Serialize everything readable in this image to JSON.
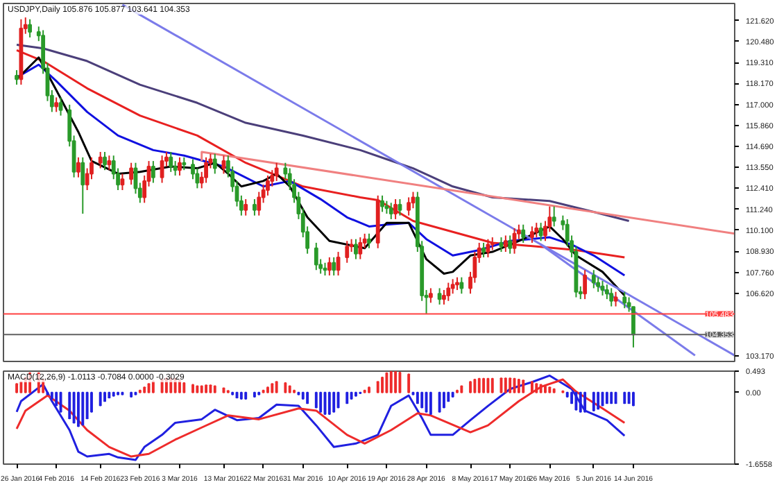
{
  "chart_data": [
    {
      "type": "candlestick",
      "title": "USDJPY,Daily  105.876 105.877 103.641 104.353",
      "xlim": [
        "2016-01-23",
        "2016-07-07"
      ],
      "ylim": [
        102.87,
        122.57
      ],
      "tick_labels": "y",
      "yticks": [
        {
          "value": 121.62,
          "label": "121.620"
        },
        {
          "value": 120.48,
          "label": "120.480"
        },
        {
          "value": 119.31,
          "label": "119.310"
        },
        {
          "value": 118.17,
          "label": "118.170"
        },
        {
          "value": 117.0,
          "label": "117.000"
        },
        {
          "value": 115.86,
          "label": "115.860"
        },
        {
          "value": 114.69,
          "label": "114.690"
        },
        {
          "value": 113.55,
          "label": "113.550"
        },
        {
          "value": 112.41,
          "label": "112.410"
        },
        {
          "value": 111.24,
          "label": "111.240"
        },
        {
          "value": 110.1,
          "label": "110.100"
        },
        {
          "value": 108.93,
          "label": "108.930"
        },
        {
          "value": 107.76,
          "label": "107.760"
        },
        {
          "value": 106.62,
          "label": "106.620"
        },
        {
          "value": 103.17,
          "label": "103.170"
        }
      ],
      "x": [
        "2016-01-26",
        "2016-01-27",
        "2016-01-28",
        "2016-01-29",
        "2016-01-31",
        "2016-02-01",
        "2016-02-02",
        "2016-02-03",
        "2016-02-04",
        "2016-02-05",
        "2016-02-07",
        "2016-02-08",
        "2016-02-09",
        "2016-02-10",
        "2016-02-11",
        "2016-02-12",
        "2016-02-14",
        "2016-02-15",
        "2016-02-16",
        "2016-02-17",
        "2016-02-18",
        "2016-02-19",
        "2016-02-21",
        "2016-02-22",
        "2016-02-23",
        "2016-02-24",
        "2016-02-25",
        "2016-02-26",
        "2016-02-28",
        "2016-02-29",
        "2016-03-01",
        "2016-03-02",
        "2016-03-03",
        "2016-03-04",
        "2016-03-06",
        "2016-03-07",
        "2016-03-08",
        "2016-03-09",
        "2016-03-10",
        "2016-03-11",
        "2016-03-13",
        "2016-03-14",
        "2016-03-15",
        "2016-03-16",
        "2016-03-17",
        "2016-03-18",
        "2016-03-20",
        "2016-03-21",
        "2016-03-22",
        "2016-03-23",
        "2016-03-24",
        "2016-03-25",
        "2016-03-27",
        "2016-03-28",
        "2016-03-29",
        "2016-03-30",
        "2016-03-31",
        "2016-04-01",
        "2016-04-03",
        "2016-04-04",
        "2016-04-05",
        "2016-04-06",
        "2016-04-07",
        "2016-04-08",
        "2016-04-10",
        "2016-04-11",
        "2016-04-12",
        "2016-04-13",
        "2016-04-14",
        "2016-04-15",
        "2016-04-17",
        "2016-04-18",
        "2016-04-19",
        "2016-04-20",
        "2016-04-21",
        "2016-04-22",
        "2016-04-24",
        "2016-04-25",
        "2016-04-26",
        "2016-04-27",
        "2016-04-28",
        "2016-04-29",
        "2016-05-01",
        "2016-05-02",
        "2016-05-03",
        "2016-05-04",
        "2016-05-05",
        "2016-05-06",
        "2016-05-08",
        "2016-05-09",
        "2016-05-10",
        "2016-05-11",
        "2016-05-12",
        "2016-05-13",
        "2016-05-15",
        "2016-05-16",
        "2016-05-17",
        "2016-05-18",
        "2016-05-19",
        "2016-05-20",
        "2016-05-22",
        "2016-05-23",
        "2016-05-24",
        "2016-05-25",
        "2016-05-26",
        "2016-05-27",
        "2016-05-29",
        "2016-05-30",
        "2016-05-31",
        "2016-06-01",
        "2016-06-02",
        "2016-06-03",
        "2016-06-05",
        "2016-06-06",
        "2016-06-07",
        "2016-06-08",
        "2016-06-09",
        "2016-06-10",
        "2016-06-12",
        "2016-06-13",
        "2016-06-14"
      ],
      "ohlc": [
        [
          118.6,
          118.9,
          118.1,
          118.4
        ],
        [
          118.4,
          121.7,
          118.1,
          121.2
        ],
        [
          121.2,
          121.8,
          120.9,
          121.4
        ],
        [
          121.4,
          121.7,
          120.7,
          121.0
        ],
        [
          121.0,
          121.3,
          120.5,
          120.8
        ],
        [
          120.8,
          121.1,
          118.7,
          119.0
        ],
        [
          119.0,
          119.3,
          117.2,
          117.5
        ],
        [
          117.5,
          117.8,
          116.6,
          116.9
        ],
        [
          116.9,
          117.4,
          116.6,
          117.1
        ],
        [
          117.1,
          117.4,
          116.4,
          116.7
        ],
        [
          116.7,
          117.0,
          114.7,
          115.0
        ],
        [
          115.0,
          115.3,
          113.0,
          113.3
        ],
        [
          113.3,
          114.1,
          113.0,
          113.8
        ],
        [
          113.8,
          114.1,
          111.0,
          112.6
        ],
        [
          112.6,
          113.5,
          112.3,
          113.2
        ],
        [
          113.2,
          114.1,
          112.9,
          113.8
        ],
        [
          113.8,
          114.4,
          113.5,
          114.1
        ],
        [
          114.1,
          114.4,
          113.4,
          113.7
        ],
        [
          113.7,
          114.2,
          113.4,
          113.9
        ],
        [
          113.9,
          114.2,
          112.9,
          113.2
        ],
        [
          113.2,
          113.5,
          112.3,
          112.6
        ],
        [
          112.6,
          113.2,
          112.3,
          112.9
        ],
        [
          112.9,
          113.8,
          112.6,
          113.5
        ],
        [
          113.5,
          113.8,
          112.1,
          112.4
        ],
        [
          112.4,
          112.7,
          111.6,
          111.9
        ],
        [
          111.9,
          113.1,
          111.6,
          112.8
        ],
        [
          112.8,
          113.9,
          112.5,
          113.6
        ],
        [
          113.6,
          113.9,
          112.7,
          113.0
        ],
        [
          113.0,
          114.2,
          112.7,
          113.9
        ],
        [
          113.9,
          114.4,
          113.6,
          114.1
        ],
        [
          114.1,
          114.4,
          113.3,
          113.6
        ],
        [
          113.6,
          113.9,
          113.1,
          113.4
        ],
        [
          113.4,
          114.1,
          113.1,
          113.8
        ],
        [
          113.8,
          114.1,
          113.4,
          113.7
        ],
        [
          113.7,
          114.0,
          112.9,
          113.2
        ],
        [
          113.2,
          113.5,
          112.4,
          112.7
        ],
        [
          112.7,
          113.3,
          112.4,
          113.0
        ],
        [
          113.0,
          114.1,
          112.7,
          113.8
        ],
        [
          113.8,
          114.3,
          113.5,
          114.0
        ],
        [
          114.0,
          114.3,
          113.2,
          113.5
        ],
        [
          113.5,
          114.2,
          113.2,
          113.9
        ],
        [
          113.9,
          114.2,
          113.0,
          113.3
        ],
        [
          113.3,
          113.6,
          112.2,
          112.5
        ],
        [
          112.5,
          112.8,
          111.4,
          111.7
        ],
        [
          111.7,
          112.0,
          110.9,
          111.2
        ],
        [
          111.2,
          111.8,
          110.9,
          111.5
        ],
        [
          111.5,
          111.8,
          110.9,
          111.2
        ],
        [
          111.2,
          112.2,
          110.9,
          111.9
        ],
        [
          111.9,
          112.6,
          111.6,
          112.3
        ],
        [
          112.3,
          113.1,
          112.0,
          112.8
        ],
        [
          112.8,
          113.4,
          112.5,
          113.1
        ],
        [
          113.1,
          113.8,
          112.8,
          113.5
        ],
        [
          113.5,
          113.8,
          112.9,
          113.2
        ],
        [
          113.2,
          113.5,
          112.3,
          112.6
        ],
        [
          112.6,
          112.9,
          111.6,
          111.9
        ],
        [
          111.9,
          112.2,
          110.7,
          111.0
        ],
        [
          111.0,
          111.3,
          109.7,
          110.0
        ],
        [
          110.0,
          110.3,
          108.8,
          109.1
        ],
        [
          109.1,
          109.4,
          107.9,
          108.2
        ],
        [
          108.2,
          108.5,
          107.7,
          108.0
        ],
        [
          108.0,
          108.3,
          107.6,
          107.9
        ],
        [
          107.9,
          108.6,
          107.6,
          108.3
        ],
        [
          108.3,
          108.6,
          107.6,
          107.9
        ],
        [
          107.9,
          108.9,
          107.6,
          108.6
        ],
        [
          108.6,
          109.5,
          108.3,
          109.2
        ],
        [
          109.2,
          109.6,
          108.9,
          109.3
        ],
        [
          109.3,
          109.6,
          108.5,
          108.8
        ],
        [
          108.8,
          109.7,
          108.5,
          109.4
        ],
        [
          109.4,
          109.9,
          109.1,
          109.6
        ],
        [
          109.6,
          109.9,
          109.1,
          109.4
        ],
        [
          109.4,
          112.0,
          109.1,
          111.7
        ],
        [
          111.7,
          112.0,
          111.1,
          111.4
        ],
        [
          111.4,
          111.7,
          111.0,
          111.3
        ],
        [
          111.3,
          111.6,
          110.7,
          111.0
        ],
        [
          111.0,
          111.8,
          110.7,
          111.5
        ],
        [
          111.5,
          111.8,
          110.9,
          111.2
        ],
        [
          111.2,
          111.9,
          110.9,
          111.6
        ],
        [
          111.6,
          112.2,
          111.3,
          111.9
        ],
        [
          111.9,
          112.2,
          108.9,
          109.2
        ],
        [
          109.2,
          109.5,
          106.2,
          106.5
        ],
        [
          106.5,
          106.8,
          105.5,
          106.4
        ],
        [
          106.4,
          106.9,
          106.1,
          106.6
        ],
        [
          106.6,
          106.9,
          106.0,
          106.3
        ],
        [
          106.3,
          106.8,
          106.0,
          106.5
        ],
        [
          106.5,
          107.2,
          106.2,
          106.9
        ],
        [
          106.9,
          107.4,
          106.6,
          107.1
        ],
        [
          107.1,
          107.5,
          106.8,
          107.2
        ],
        [
          107.2,
          107.5,
          106.6,
          106.9
        ],
        [
          106.9,
          107.8,
          106.6,
          107.5
        ],
        [
          107.5,
          108.9,
          107.2,
          108.6
        ],
        [
          108.6,
          109.4,
          108.3,
          109.1
        ],
        [
          109.1,
          109.4,
          108.6,
          108.9
        ],
        [
          108.9,
          109.6,
          108.6,
          109.3
        ],
        [
          109.3,
          109.7,
          109.0,
          109.4
        ],
        [
          109.4,
          109.7,
          108.9,
          109.2
        ],
        [
          109.2,
          109.8,
          108.9,
          109.5
        ],
        [
          109.5,
          109.8,
          108.8,
          109.1
        ],
        [
          109.1,
          110.2,
          108.8,
          109.9
        ],
        [
          109.9,
          110.4,
          109.6,
          110.1
        ],
        [
          110.1,
          110.4,
          109.4,
          109.7
        ],
        [
          109.7,
          110.3,
          109.4,
          110.0
        ],
        [
          110.0,
          110.5,
          109.7,
          110.2
        ],
        [
          110.2,
          110.5,
          109.5,
          109.8
        ],
        [
          109.8,
          110.6,
          109.5,
          110.3
        ],
        [
          110.3,
          111.4,
          110.0,
          110.8
        ],
        [
          110.8,
          111.4,
          110.3,
          110.6
        ],
        [
          110.6,
          110.9,
          110.1,
          110.4
        ],
        [
          110.4,
          110.7,
          109.2,
          109.5
        ],
        [
          109.5,
          109.8,
          108.6,
          108.9
        ],
        [
          108.9,
          109.2,
          106.4,
          106.7
        ],
        [
          106.7,
          107.0,
          106.3,
          106.6
        ],
        [
          106.6,
          107.9,
          106.3,
          107.6
        ],
        [
          107.6,
          107.9,
          106.9,
          107.2
        ],
        [
          107.2,
          107.5,
          106.7,
          107.0
        ],
        [
          107.0,
          107.3,
          106.5,
          106.8
        ],
        [
          106.8,
          107.1,
          106.3,
          106.6
        ],
        [
          106.6,
          106.9,
          105.9,
          106.2
        ],
        [
          106.2,
          106.7,
          105.9,
          106.4
        ],
        [
          106.4,
          106.7,
          105.8,
          106.1
        ],
        [
          106.1,
          106.4,
          105.6,
          105.9
        ],
        [
          105.876,
          105.877,
          103.641,
          104.353
        ]
      ],
      "colors": [
        "#2a9a2a",
        "#e02020",
        "#e02020",
        "#2a9a2a",
        "#2a9a2a",
        "#2a9a2a",
        "#2a9a2a",
        "#2a9a2a",
        "#e02020",
        "#2a9a2a",
        "#2a9a2a",
        "#2a9a2a",
        "#e02020",
        "#2a9a2a",
        "#e02020",
        "#e02020",
        "#e02020",
        "#2a9a2a",
        "#e02020",
        "#2a9a2a",
        "#2a9a2a",
        "#e02020",
        "#e02020",
        "#2a9a2a",
        "#2a9a2a",
        "#e02020",
        "#e02020",
        "#2a9a2a",
        "#e02020",
        "#e02020",
        "#2a9a2a",
        "#2a9a2a",
        "#e02020",
        "#2a9a2a",
        "#2a9a2a",
        "#2a9a2a",
        "#e02020",
        "#e02020",
        "#e02020",
        "#2a9a2a",
        "#e02020",
        "#2a9a2a",
        "#2a9a2a",
        "#2a9a2a",
        "#2a9a2a",
        "#e02020",
        "#2a9a2a",
        "#e02020",
        "#e02020",
        "#e02020",
        "#e02020",
        "#e02020",
        "#2a9a2a",
        "#2a9a2a",
        "#2a9a2a",
        "#2a9a2a",
        "#2a9a2a",
        "#2a9a2a",
        "#2a9a2a",
        "#2a9a2a",
        "#2a9a2a",
        "#e02020",
        "#2a9a2a",
        "#e02020",
        "#e02020",
        "#e02020",
        "#2a9a2a",
        "#e02020",
        "#e02020",
        "#2a9a2a",
        "#e02020",
        "#2a9a2a",
        "#2a9a2a",
        "#2a9a2a",
        "#e02020",
        "#2a9a2a",
        "#e02020",
        "#e02020",
        "#2a9a2a",
        "#2a9a2a",
        "#2a9a2a",
        "#e02020",
        "#2a9a2a",
        "#e02020",
        "#e02020",
        "#e02020",
        "#e02020",
        "#2a9a2a",
        "#e02020",
        "#e02020",
        "#e02020",
        "#2a9a2a",
        "#e02020",
        "#e02020",
        "#2a9a2a",
        "#e02020",
        "#2a9a2a",
        "#e02020",
        "#e02020",
        "#2a9a2a",
        "#e02020",
        "#e02020",
        "#2a9a2a",
        "#e02020",
        "#e02020",
        "#2a9a2a",
        "#2a9a2a",
        "#2a9a2a",
        "#2a9a2a",
        "#2a9a2a",
        "#2a9a2a",
        "#e02020",
        "#2a9a2a",
        "#2a9a2a",
        "#2a9a2a",
        "#2a9a2a",
        "#2a9a2a",
        "#e02020",
        "#2a9a2a",
        "#2a9a2a",
        "#2a9a2a"
      ],
      "series": [
        {
          "type": "line",
          "color": "#4b3f7a",
          "x": [
            "2016-01-26",
            "2016-02-01",
            "2016-02-11",
            "2016-02-23",
            "2016-03-07",
            "2016-03-18",
            "2016-03-31",
            "2016-04-13",
            "2016-04-19",
            "2016-04-25",
            "2016-05-04",
            "2016-05-13",
            "2016-05-26",
            "2016-06-05",
            "2016-06-13"
          ],
          "values": [
            120.3,
            120.1,
            119.4,
            118.1,
            117.1,
            116.0,
            115.3,
            114.5,
            114.0,
            113.5,
            112.5,
            111.9,
            111.7,
            111.1,
            110.6
          ]
        },
        {
          "type": "line",
          "color": "#e82020",
          "x": [
            "2016-01-26",
            "2016-02-01",
            "2016-02-11",
            "2016-02-23",
            "2016-03-07",
            "2016-03-18",
            "2016-03-31",
            "2016-04-13",
            "2016-04-17",
            "2016-04-25",
            "2016-05-04",
            "2016-05-13",
            "2016-05-23",
            "2016-06-01",
            "2016-06-12"
          ],
          "values": [
            120.0,
            119.4,
            117.9,
            116.4,
            115.3,
            113.8,
            112.5,
            111.9,
            111.75,
            110.6,
            110.0,
            109.4,
            109.2,
            109.0,
            108.6
          ]
        },
        {
          "type": "line",
          "color": "#1010e0",
          "x": [
            "2016-01-26",
            "2016-01-31",
            "2016-02-04",
            "2016-02-11",
            "2016-02-18",
            "2016-02-26",
            "2016-03-04",
            "2016-03-13",
            "2016-03-22",
            "2016-03-28",
            "2016-04-04",
            "2016-04-10",
            "2016-04-15",
            "2016-04-19",
            "2016-04-24",
            "2016-04-28",
            "2016-05-04",
            "2016-05-10",
            "2016-05-17",
            "2016-05-26",
            "2016-05-31",
            "2016-06-05",
            "2016-06-12"
          ],
          "values": [
            118.5,
            119.2,
            118.3,
            116.6,
            115.3,
            114.5,
            114.2,
            113.6,
            112.5,
            112.8,
            111.8,
            110.8,
            110.3,
            110.4,
            110.5,
            109.6,
            108.7,
            109.0,
            109.5,
            109.7,
            109.3,
            108.7,
            107.6
          ]
        },
        {
          "type": "line",
          "color": "#000000",
          "x": [
            "2016-01-26",
            "2016-01-31",
            "2016-02-04",
            "2016-02-09",
            "2016-02-12",
            "2016-02-18",
            "2016-02-23",
            "2016-03-01",
            "2016-03-07",
            "2016-03-11",
            "2016-03-14",
            "2016-03-17",
            "2016-03-22",
            "2016-03-25",
            "2016-03-28",
            "2016-04-01",
            "2016-04-06",
            "2016-04-14",
            "2016-04-19",
            "2016-04-24",
            "2016-04-28",
            "2016-05-02",
            "2016-05-04",
            "2016-05-08",
            "2016-05-13",
            "2016-05-19",
            "2016-05-26",
            "2016-05-29",
            "2016-06-01",
            "2016-06-07",
            "2016-06-12"
          ],
          "values": [
            118.4,
            119.6,
            117.8,
            115.5,
            113.9,
            113.2,
            113.3,
            113.6,
            113.5,
            113.8,
            113.2,
            112.5,
            112.8,
            113.2,
            112.5,
            110.8,
            109.5,
            109.1,
            110.5,
            110.5,
            108.5,
            107.7,
            107.8,
            108.7,
            108.9,
            109.5,
            110.3,
            109.6,
            108.7,
            107.8,
            106.5
          ]
        },
        {
          "type": "line",
          "color": "#7b7bea",
          "x": [
            "2016-02-19",
            "2016-07-07"
          ],
          "values": [
            122.5,
            103.2
          ]
        },
        {
          "type": "line",
          "color": "#7b7bea",
          "x": [
            "2016-05-24",
            "2016-06-28"
          ],
          "values": [
            109.3,
            103.2
          ]
        },
        {
          "type": "line",
          "color": "#f08080",
          "x": [
            "2016-03-08",
            "2016-03-08",
            "2016-07-07"
          ],
          "values": [
            113.9,
            114.4,
            109.9
          ]
        }
      ],
      "ref_lines": [
        {
          "axis": "y",
          "value": 105.483,
          "label": "105.483",
          "color": "#ff4040"
        },
        {
          "axis": "y",
          "value": 104.353,
          "label": "104.353",
          "color": "#606060"
        }
      ]
    },
    {
      "type": "bar",
      "title": "MACD(12,26,9) -1.0113 -0.7084 0.0000 -0.3029",
      "xlim": [
        "2016-01-23",
        "2016-07-07"
      ],
      "xticks": [
        {
          "value": "2016-01-26",
          "label": "26 Jan 2016"
        },
        {
          "value": "2016-02-04",
          "label": "4 Feb 2016"
        },
        {
          "value": "2016-02-14",
          "label": "14 Feb 2016"
        },
        {
          "value": "2016-02-23",
          "label": "23 Feb 2016"
        },
        {
          "value": "2016-03-03",
          "label": "3 Mar 2016"
        },
        {
          "value": "2016-03-13",
          "label": "13 Mar 2016"
        },
        {
          "value": "2016-03-22",
          "label": "22 Mar 2016"
        },
        {
          "value": "2016-03-31",
          "label": "31 Mar 2016"
        },
        {
          "value": "2016-04-10",
          "label": "10 Apr 2016"
        },
        {
          "value": "2016-04-19",
          "label": "19 Apr 2016"
        },
        {
          "value": "2016-04-28",
          "label": "28 Apr 2016"
        },
        {
          "value": "2016-05-08",
          "label": "8 May 2016"
        },
        {
          "value": "2016-05-17",
          "label": "17 May 2016"
        },
        {
          "value": "2016-05-26",
          "label": "26 May 2016"
        },
        {
          "value": "2016-06-05",
          "label": "5 Jun 2016"
        },
        {
          "value": "2016-06-14",
          "label": "14 Jun 2016"
        }
      ],
      "ylim": [
        -1.6558,
        0.493
      ],
      "yticks": [
        {
          "value": 0.493,
          "label": "0.493"
        },
        {
          "value": 0,
          "label": "0.00"
        },
        {
          "value": -1.6558,
          "label": "-1.6558"
        }
      ],
      "x": [
        "2016-01-26",
        "2016-01-27",
        "2016-01-28",
        "2016-01-29",
        "2016-01-31",
        "2016-02-01",
        "2016-02-02",
        "2016-02-03",
        "2016-02-04",
        "2016-02-05",
        "2016-02-07",
        "2016-02-08",
        "2016-02-09",
        "2016-02-10",
        "2016-02-11",
        "2016-02-12",
        "2016-02-14",
        "2016-02-15",
        "2016-02-16",
        "2016-02-17",
        "2016-02-18",
        "2016-02-19",
        "2016-02-21",
        "2016-02-22",
        "2016-02-23",
        "2016-02-24",
        "2016-02-25",
        "2016-02-26",
        "2016-02-28",
        "2016-02-29",
        "2016-03-01",
        "2016-03-02",
        "2016-03-03",
        "2016-03-04",
        "2016-03-06",
        "2016-03-07",
        "2016-03-08",
        "2016-03-09",
        "2016-03-10",
        "2016-03-11",
        "2016-03-13",
        "2016-03-14",
        "2016-03-15",
        "2016-03-16",
        "2016-03-17",
        "2016-03-18",
        "2016-03-20",
        "2016-03-21",
        "2016-03-22",
        "2016-03-23",
        "2016-03-24",
        "2016-03-25",
        "2016-03-27",
        "2016-03-28",
        "2016-03-29",
        "2016-03-30",
        "2016-03-31",
        "2016-04-01",
        "2016-04-03",
        "2016-04-04",
        "2016-04-05",
        "2016-04-06",
        "2016-04-07",
        "2016-04-08",
        "2016-04-10",
        "2016-04-11",
        "2016-04-12",
        "2016-04-13",
        "2016-04-14",
        "2016-04-15",
        "2016-04-17",
        "2016-04-18",
        "2016-04-19",
        "2016-04-20",
        "2016-04-21",
        "2016-04-22",
        "2016-04-24",
        "2016-04-25",
        "2016-04-26",
        "2016-04-27",
        "2016-04-28",
        "2016-04-29",
        "2016-05-01",
        "2016-05-02",
        "2016-05-03",
        "2016-05-04",
        "2016-05-05",
        "2016-05-06",
        "2016-05-08",
        "2016-05-09",
        "2016-05-10",
        "2016-05-11",
        "2016-05-12",
        "2016-05-13",
        "2016-05-15",
        "2016-05-16",
        "2016-05-17",
        "2016-05-18",
        "2016-05-19",
        "2016-05-20",
        "2016-05-22",
        "2016-05-23",
        "2016-05-24",
        "2016-05-25",
        "2016-05-26",
        "2016-05-27",
        "2016-05-29",
        "2016-05-30",
        "2016-05-31",
        "2016-06-01",
        "2016-06-02",
        "2016-06-03",
        "2016-06-05",
        "2016-06-06",
        "2016-06-07",
        "2016-06-08",
        "2016-06-09",
        "2016-06-10",
        "2016-06-12",
        "2016-06-13",
        "2016-06-14"
      ],
      "values": [
        0.2,
        0.25,
        0.35,
        0.45,
        0.45,
        0.3,
        -0.05,
        -0.15,
        -0.3,
        -0.45,
        -0.6,
        -0.7,
        -0.78,
        -0.75,
        -0.6,
        -0.45,
        -0.3,
        -0.2,
        -0.12,
        -0.08,
        -0.05,
        -0.05,
        -0.1,
        -0.05,
        0.05,
        0.12,
        0.2,
        0.26,
        0.3,
        0.33,
        0.33,
        0.32,
        0.28,
        0.22,
        0.18,
        0.15,
        0.15,
        0.17,
        0.17,
        0.15,
        0.1,
        0.04,
        -0.05,
        -0.12,
        -0.15,
        -0.15,
        -0.1,
        -0.05,
        0.05,
        0.12,
        0.2,
        0.25,
        0.22,
        0.15,
        0.05,
        -0.05,
        -0.15,
        -0.25,
        -0.35,
        -0.45,
        -0.5,
        -0.5,
        -0.45,
        -0.35,
        -0.25,
        -0.15,
        -0.08,
        -0.02,
        0.05,
        0.12,
        0.25,
        0.35,
        0.45,
        0.48,
        0.48,
        0.46,
        0.42,
        -0.05,
        -0.25,
        -0.35,
        -0.45,
        -0.5,
        -0.45,
        -0.35,
        -0.2,
        -0.1,
        0.05,
        0.15,
        0.25,
        0.3,
        0.32,
        0.32,
        0.32,
        0.32,
        0.33,
        0.33,
        0.33,
        0.32,
        0.3,
        0.28,
        0.25,
        0.2,
        0.18,
        0.15,
        0.12,
        0.08,
        0.03,
        -0.1,
        -0.25,
        -0.4,
        -0.45,
        -0.45,
        -0.42,
        -0.38,
        -0.3,
        -0.25,
        -0.25,
        -0.25,
        -0.25,
        -0.25,
        -0.3
      ],
      "colors": [
        "#ee2b2b",
        "#ee2b2b",
        "#ee2b2b",
        "#ee2b2b",
        "#ee2b2b",
        "#ee2b2b",
        "#2020e0",
        "#2020e0",
        "#2020e0",
        "#2020e0",
        "#2020e0",
        "#2020e0",
        "#2020e0",
        "#2020e0",
        "#2020e0",
        "#2020e0",
        "#2020e0",
        "#2020e0",
        "#2020e0",
        "#2020e0",
        "#2020e0",
        "#2020e0",
        "#2020e0",
        "#2020e0",
        "#ee2b2b",
        "#ee2b2b",
        "#ee2b2b",
        "#ee2b2b",
        "#ee2b2b",
        "#ee2b2b",
        "#ee2b2b",
        "#ee2b2b",
        "#ee2b2b",
        "#ee2b2b",
        "#ee2b2b",
        "#ee2b2b",
        "#ee2b2b",
        "#ee2b2b",
        "#ee2b2b",
        "#ee2b2b",
        "#ee2b2b",
        "#ee2b2b",
        "#2020e0",
        "#2020e0",
        "#2020e0",
        "#2020e0",
        "#2020e0",
        "#2020e0",
        "#ee2b2b",
        "#ee2b2b",
        "#ee2b2b",
        "#ee2b2b",
        "#ee2b2b",
        "#ee2b2b",
        "#ee2b2b",
        "#2020e0",
        "#2020e0",
        "#2020e0",
        "#2020e0",
        "#2020e0",
        "#2020e0",
        "#2020e0",
        "#2020e0",
        "#2020e0",
        "#2020e0",
        "#2020e0",
        "#2020e0",
        "#2020e0",
        "#ee2b2b",
        "#ee2b2b",
        "#ee2b2b",
        "#ee2b2b",
        "#ee2b2b",
        "#ee2b2b",
        "#ee2b2b",
        "#ee2b2b",
        "#ee2b2b",
        "#2020e0",
        "#2020e0",
        "#2020e0",
        "#2020e0",
        "#2020e0",
        "#2020e0",
        "#2020e0",
        "#2020e0",
        "#2020e0",
        "#ee2b2b",
        "#ee2b2b",
        "#ee2b2b",
        "#ee2b2b",
        "#ee2b2b",
        "#ee2b2b",
        "#ee2b2b",
        "#ee2b2b",
        "#ee2b2b",
        "#ee2b2b",
        "#ee2b2b",
        "#ee2b2b",
        "#ee2b2b",
        "#ee2b2b",
        "#ee2b2b",
        "#ee2b2b",
        "#ee2b2b",
        "#ee2b2b",
        "#ee2b2b",
        "#ee2b2b",
        "#ee2b2b",
        "#2020e0",
        "#2020e0",
        "#2020e0",
        "#2020e0",
        "#2020e0",
        "#2020e0",
        "#2020e0",
        "#2020e0",
        "#2020e0",
        "#2020e0",
        "#2020e0",
        "#2020e0",
        "#2020e0",
        "#2020e0"
      ],
      "series": [
        {
          "type": "line",
          "color": "#2020e0",
          "x": [
            "2016-01-26",
            "2016-01-27",
            "2016-02-01",
            "2016-02-03",
            "2016-02-07",
            "2016-02-09",
            "2016-02-11",
            "2016-02-16",
            "2016-02-18",
            "2016-02-22",
            "2016-02-24",
            "2016-02-28",
            "2016-03-02",
            "2016-03-08",
            "2016-03-11",
            "2016-03-16",
            "2016-03-21",
            "2016-03-25",
            "2016-03-30",
            "2016-04-03",
            "2016-04-07",
            "2016-04-12",
            "2016-04-17",
            "2016-04-20",
            "2016-04-24",
            "2016-04-27",
            "2016-04-29",
            "2016-05-04",
            "2016-05-08",
            "2016-05-12",
            "2016-05-17",
            "2016-05-22",
            "2016-05-26",
            "2016-05-31",
            "2016-06-03",
            "2016-06-08",
            "2016-06-12"
          ],
          "values": [
            -0.45,
            -0.2,
            0.19,
            -0.2,
            -0.87,
            -1.37,
            -1.48,
            -1.42,
            -1.5,
            -1.56,
            -1.26,
            -0.98,
            -0.7,
            -0.62,
            -0.4,
            -0.64,
            -0.59,
            -0.28,
            -0.31,
            -0.76,
            -1.26,
            -1.18,
            -0.98,
            -0.31,
            -0.07,
            -0.59,
            -0.98,
            -0.98,
            -0.64,
            -0.31,
            0.08,
            0.24,
            0.39,
            0.08,
            -0.42,
            -0.64,
            -1.0
          ]
        },
        {
          "type": "line",
          "color": "#ee2b2b",
          "x": [
            "2016-01-26",
            "2016-01-28",
            "2016-02-02",
            "2016-02-07",
            "2016-02-11",
            "2016-02-16",
            "2016-02-21",
            "2016-02-25",
            "2016-03-02",
            "2016-03-08",
            "2016-03-14",
            "2016-03-21",
            "2016-03-30",
            "2016-04-03",
            "2016-04-10",
            "2016-04-14",
            "2016-04-20",
            "2016-04-26",
            "2016-04-29",
            "2016-05-08",
            "2016-05-12",
            "2016-05-19",
            "2016-05-24",
            "2016-05-29",
            "2016-06-01",
            "2016-06-07",
            "2016-06-12"
          ],
          "values": [
            -0.84,
            -0.42,
            -0.07,
            -0.42,
            -0.87,
            -1.26,
            -1.48,
            -1.42,
            -1.09,
            -0.81,
            -0.53,
            -0.62,
            -0.37,
            -0.42,
            -0.98,
            -1.18,
            -0.87,
            -0.48,
            -0.53,
            -0.92,
            -0.76,
            -0.2,
            0.13,
            0.3,
            0.02,
            -0.37,
            -0.7
          ]
        }
      ]
    }
  ]
}
